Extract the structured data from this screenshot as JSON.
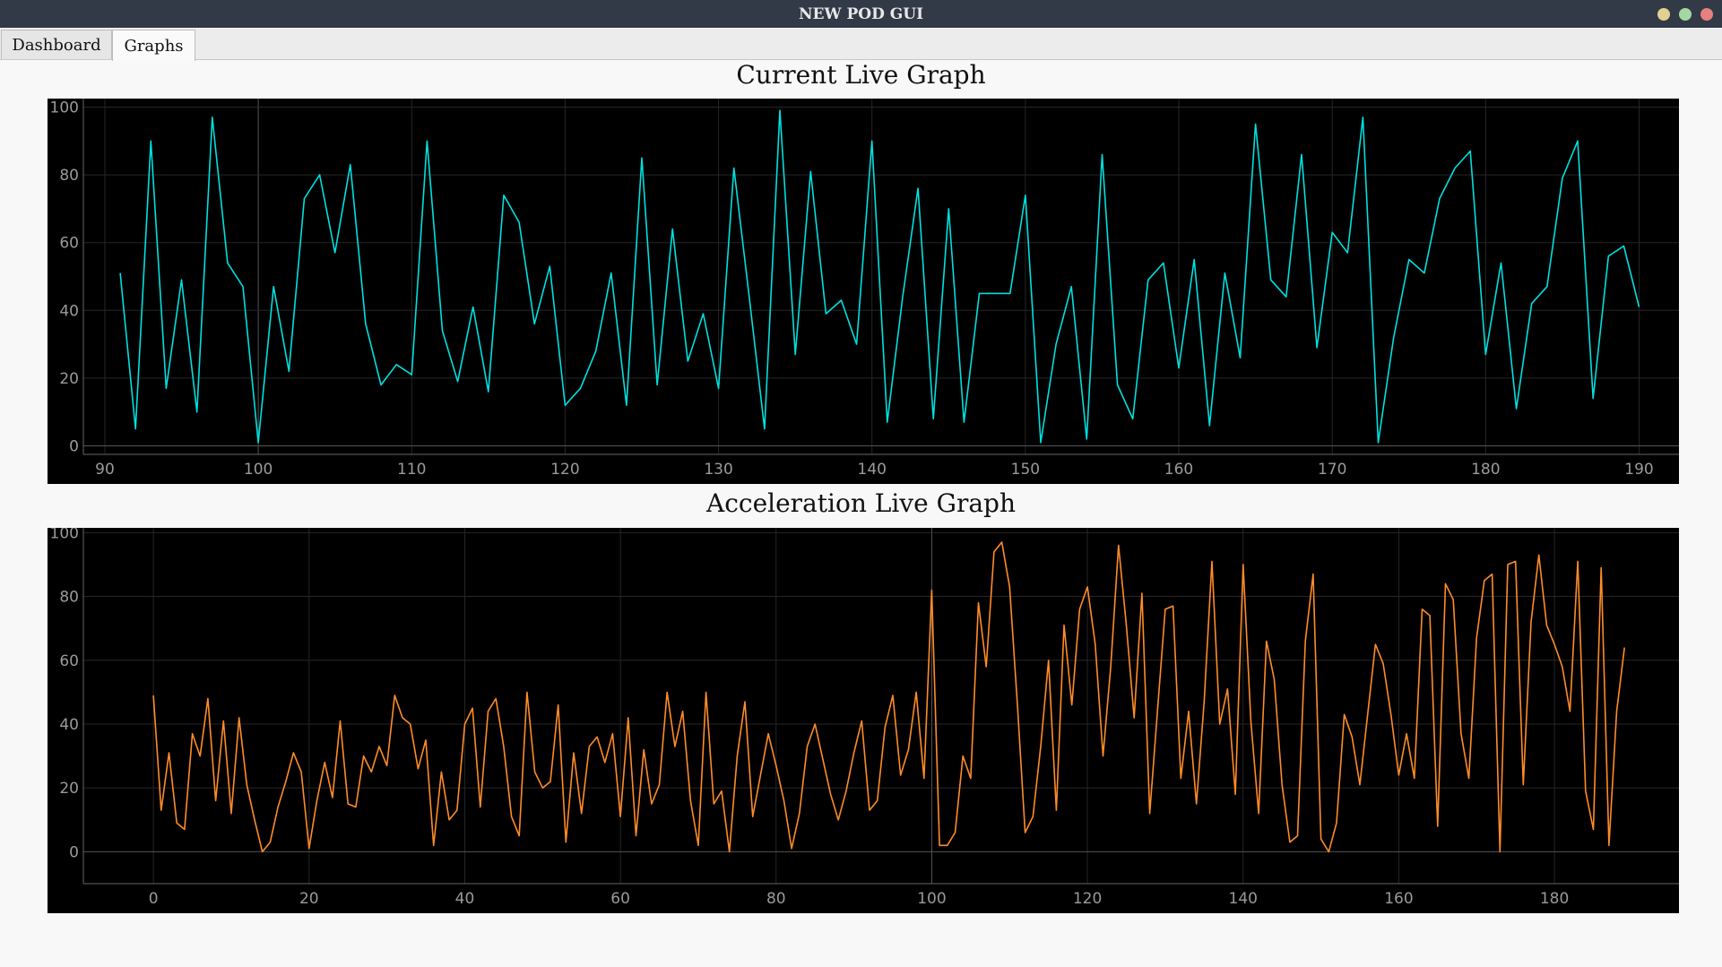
{
  "window": {
    "title": "NEW POD GUI"
  },
  "tabs": [
    {
      "label": "Dashboard"
    },
    {
      "label": "Graphs"
    }
  ],
  "colors": {
    "current_line": "#00e0e0",
    "acceleration_line": "#ff8c28",
    "plot_bg": "#000000",
    "titlebar": "#323a48"
  },
  "chart_data": [
    {
      "type": "line",
      "title": "Current Live Graph",
      "xlabel": "",
      "ylabel": "",
      "xlim": [
        88.6,
        192.6
      ],
      "ylim": [
        -2.5,
        102.5
      ],
      "xticks": [
        90,
        100,
        110,
        120,
        130,
        140,
        150,
        160,
        170,
        180,
        190
      ],
      "yticks": [
        0,
        20,
        40,
        60,
        80,
        100
      ],
      "grid": true,
      "x": [
        91,
        92,
        93,
        94,
        95,
        96,
        97,
        98,
        99,
        100,
        101,
        102,
        103,
        104,
        105,
        106,
        107,
        108,
        109,
        110,
        111,
        112,
        113,
        114,
        115,
        116,
        117,
        118,
        119,
        120,
        121,
        122,
        123,
        124,
        125,
        126,
        127,
        128,
        129,
        130,
        131,
        132,
        133,
        134,
        135,
        136,
        137,
        138,
        139,
        140,
        141,
        142,
        143,
        144,
        145,
        146,
        147,
        148,
        149,
        150,
        151,
        152,
        153,
        154,
        155,
        156,
        157,
        158,
        159,
        160,
        161,
        162,
        163,
        164,
        165,
        166,
        167,
        168,
        169,
        170,
        171,
        172,
        173,
        174,
        175,
        176,
        177,
        178,
        179,
        180,
        181,
        182,
        183,
        184,
        185,
        186,
        187,
        188,
        189,
        190
      ],
      "series": [
        {
          "values": [
            51,
            5,
            90,
            17,
            49,
            10,
            97,
            54,
            47,
            1,
            47,
            22,
            73,
            80,
            57,
            83,
            36,
            18,
            24,
            21,
            90,
            34,
            19,
            41,
            16,
            74,
            66,
            36,
            53,
            12,
            17,
            28,
            51,
            12,
            85,
            18,
            64,
            25,
            39,
            17,
            82,
            44,
            5,
            99,
            27,
            81,
            39,
            43,
            30,
            90,
            7,
            44,
            76,
            8,
            70,
            7,
            45,
            45,
            45,
            74,
            1,
            30,
            47,
            2,
            86,
            18,
            8,
            49,
            54,
            23,
            55,
            6,
            51,
            26,
            95,
            49,
            44,
            86,
            29,
            63,
            57,
            97,
            1,
            32,
            55,
            51,
            73,
            82,
            87,
            27,
            54,
            11,
            42,
            47,
            79,
            90,
            14,
            56,
            59,
            41
          ]
        }
      ]
    },
    {
      "type": "line",
      "title": "Acceleration Live Graph",
      "xlabel": "",
      "ylabel": "",
      "xlim": [
        -9,
        196
      ],
      "ylim": [
        -10,
        101.5
      ],
      "xticks": [
        0,
        20,
        40,
        60,
        80,
        100,
        120,
        140,
        160,
        180
      ],
      "yticks": [
        0,
        20,
        40,
        60,
        80,
        100
      ],
      "grid": true,
      "x_start": 0,
      "series": [
        {
          "values": [
            49,
            13,
            31,
            9,
            7,
            37,
            30,
            48,
            16,
            41,
            12,
            42,
            21,
            10,
            0,
            3,
            14,
            22,
            31,
            25,
            1,
            16,
            28,
            17,
            41,
            15,
            14,
            30,
            25,
            33,
            27,
            49,
            42,
            40,
            26,
            35,
            2,
            25,
            10,
            13,
            40,
            45,
            14,
            44,
            48,
            33,
            11,
            5,
            50,
            25,
            20,
            22,
            46,
            3,
            31,
            12,
            33,
            36,
            28,
            37,
            11,
            42,
            5,
            32,
            15,
            21,
            50,
            33,
            44,
            16,
            2,
            50,
            15,
            19,
            0,
            30,
            47,
            11,
            24,
            37,
            27,
            16,
            1,
            12,
            33,
            40,
            29,
            18,
            10,
            19,
            31,
            41,
            13,
            16,
            39,
            49,
            24,
            32,
            50,
            23,
            82,
            2,
            2,
            6,
            30,
            23,
            78,
            58,
            94,
            97,
            83,
            46,
            6,
            11,
            33,
            60,
            13,
            71,
            46,
            76,
            83,
            65,
            30,
            58,
            96,
            71,
            42,
            81,
            12,
            44,
            76,
            77,
            23,
            44,
            15,
            47,
            91,
            40,
            51,
            18,
            90,
            41,
            12,
            66,
            54,
            21,
            3,
            5,
            66,
            87,
            4,
            0,
            9,
            43,
            36,
            21,
            43,
            65,
            59,
            43,
            24,
            37,
            23,
            76,
            74,
            8,
            84,
            79,
            37,
            23,
            67,
            85,
            87,
            0,
            90,
            91,
            21,
            72,
            93,
            71,
            65,
            58,
            44,
            91,
            19,
            7,
            89,
            2,
            44,
            64
          ]
        }
      ]
    }
  ]
}
